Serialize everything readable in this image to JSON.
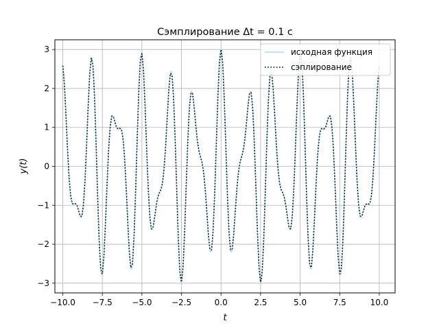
{
  "chart_data": {
    "type": "line",
    "title": "Сэмплирование Δt = 0.1 с",
    "xlabel": "t",
    "ylabel": "y(t)",
    "xlim": [
      -10.5,
      11.0
    ],
    "ylim": [
      -3.25,
      3.25
    ],
    "grid": true,
    "legend_position": "top-right",
    "xticks": [
      -10.0,
      -7.5,
      -5.0,
      -2.5,
      0.0,
      2.5,
      5.0,
      7.5,
      10.0
    ],
    "xtick_labels": [
      "−10.0",
      "−7.5",
      "−5.0",
      "−2.5",
      "0.0",
      "2.5",
      "5.0",
      "7.5",
      "10.0"
    ],
    "yticks": [
      -3,
      -2,
      -1,
      0,
      1,
      2,
      3
    ],
    "ytick_labels": [
      "−3",
      "−2",
      "−1",
      "0",
      "1",
      "2",
      "3"
    ],
    "x_range": [
      -10.0,
      10.0
    ],
    "function": {
      "components": [
        {
          "amplitude": 2.0,
          "angular_frequency": 3.8,
          "phase": 1.57
        },
        {
          "amplitude": 1.0,
          "angular_frequency": 6.2,
          "phase": 1.57
        }
      ]
    },
    "series": [
      {
        "name": "исходная функция",
        "style": "solid",
        "color": "#add8e6",
        "step": 0.01
      },
      {
        "name": "сэплирование",
        "style": "dotted",
        "color": "#000000",
        "step": 0.1
      }
    ]
  }
}
